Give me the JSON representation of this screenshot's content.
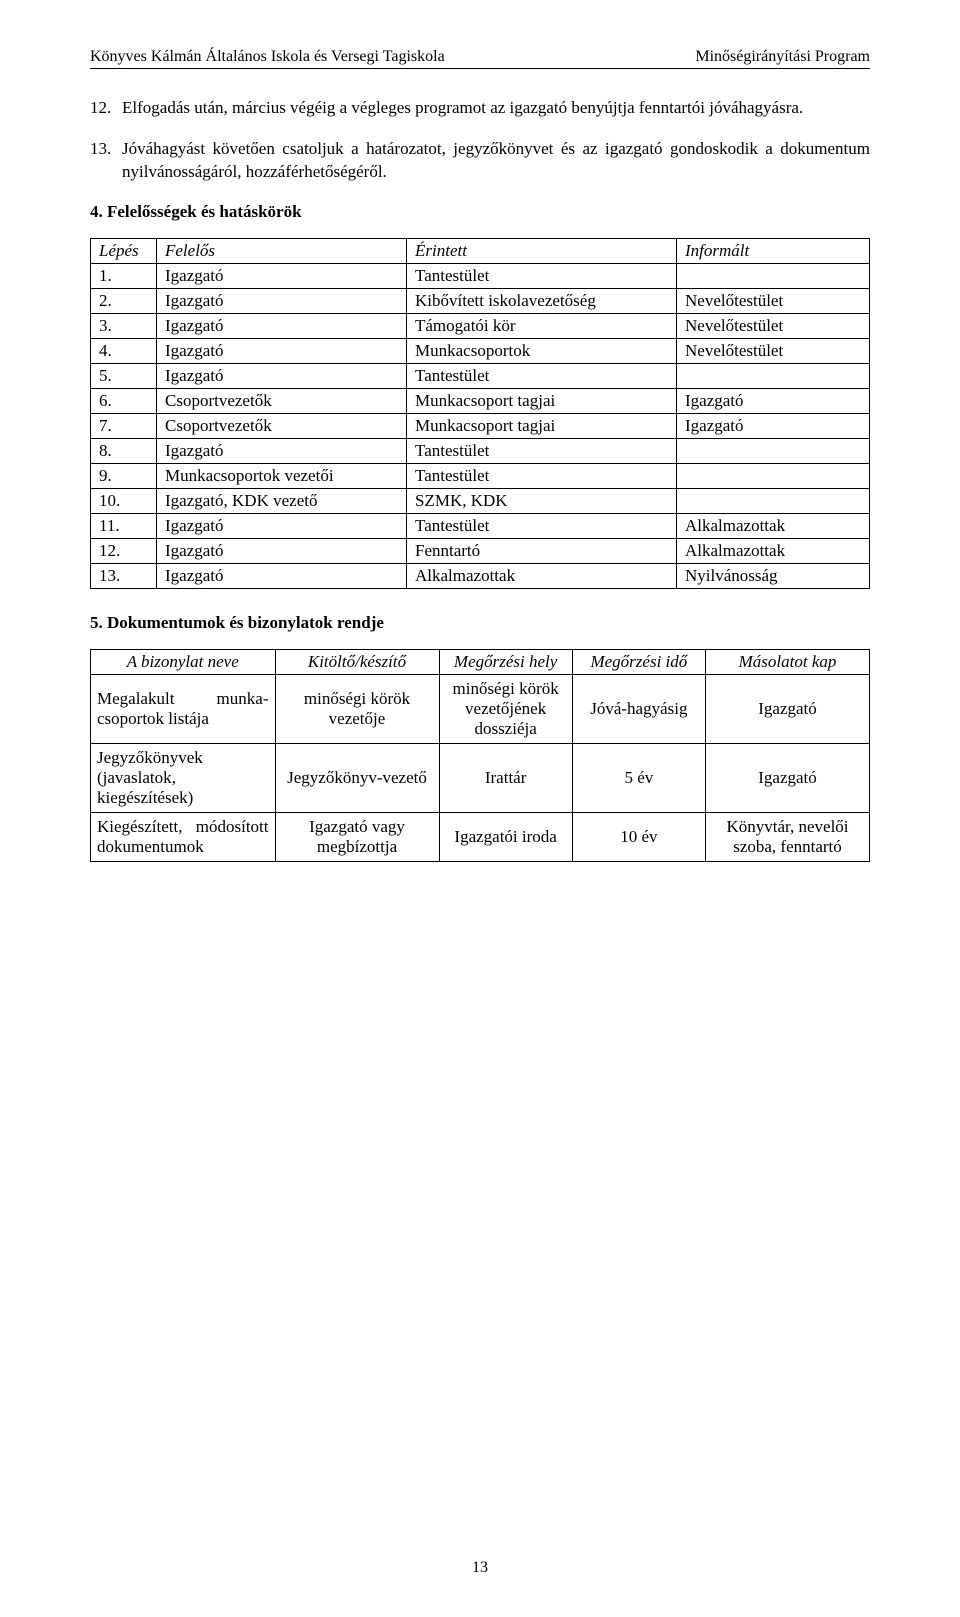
{
  "header": {
    "left": "Könyves Kálmán Általános Iskola és Versegi Tagiskola",
    "right": "Minőségirányítási  Program"
  },
  "paragraphs": [
    {
      "num": "12.",
      "text": "Elfogadás után, március végéig a végleges programot az igazgató benyújtja fenntartói jóváhagyásra."
    },
    {
      "num": "13.",
      "text": "Jóváhagyást követően csatoljuk a határozatot, jegyzőkönyvet és az igazgató gondoskodik a dokumentum nyilvánosságáról, hozzáférhetőségéről."
    }
  ],
  "section4_title": "4. Felelősségek és hatáskörök",
  "table1": {
    "headers": [
      "Lépés",
      "Felelős",
      "Érintett",
      "Informált"
    ],
    "rows": [
      [
        "1.",
        "Igazgató",
        "Tantestület",
        ""
      ],
      [
        "2.",
        "Igazgató",
        "Kibővített iskolavezetőség",
        "Nevelőtestület"
      ],
      [
        "3.",
        "Igazgató",
        "Támogatói kör",
        "Nevelőtestület"
      ],
      [
        "4.",
        "Igazgató",
        "Munkacsoportok",
        "Nevelőtestület"
      ],
      [
        "5.",
        "Igazgató",
        "Tantestület",
        ""
      ],
      [
        "6.",
        "Csoportvezetők",
        "Munkacsoport tagjai",
        "Igazgató"
      ],
      [
        "7.",
        "Csoportvezetők",
        "Munkacsoport tagjai",
        "Igazgató"
      ],
      [
        "8.",
        "Igazgató",
        "Tantestület",
        ""
      ],
      [
        "9.",
        "Munkacsoportok vezetői",
        "Tantestület",
        ""
      ],
      [
        "10.",
        "Igazgató, KDK vezető",
        "SZMK, KDK",
        ""
      ],
      [
        "11.",
        "Igazgató",
        "Tantestület",
        "Alkalmazottak"
      ],
      [
        "12.",
        "Igazgató",
        "Fenntartó",
        "Alkalmazottak"
      ],
      [
        "13.",
        "Igazgató",
        "Alkalmazottak",
        "Nyilvánosság"
      ]
    ]
  },
  "section5_title": "5. Dokumentumok és bizonylatok rendje",
  "table2": {
    "headers": [
      "A bizonylat neve",
      "Kitöltő/készítő",
      "Megőrzési hely",
      "Megőrzési idő",
      "Másolatot kap"
    ],
    "rows": [
      [
        "Megalakult munka-csoportok listája",
        "minőségi körök vezetője",
        "minőségi körök vezetőjének dossziéja",
        "Jóvá-hagyásig",
        "Igazgató"
      ],
      [
        "Jegyzőkönyvek (javaslatok, kiegészítések)",
        "Jegyzőkönyv-vezető",
        "Irattár",
        "5 év",
        "Igazgató"
      ],
      [
        "Kiegészített, módosított dokumentumok",
        "Igazgató vagy megbízottja",
        "Igazgatói iroda",
        "10 év",
        "Könyvtár, nevelői szoba, fenntartó"
      ]
    ]
  },
  "page_number": "13"
}
